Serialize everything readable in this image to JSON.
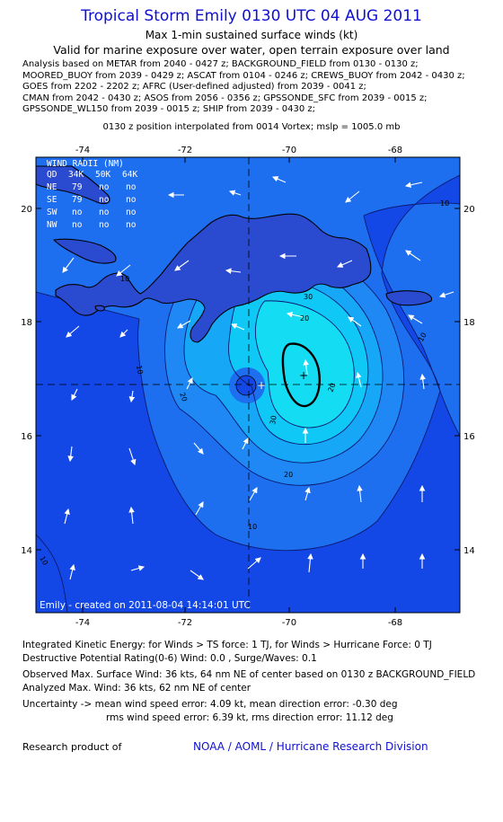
{
  "header": {
    "title": "Tropical Storm Emily 0130 UTC 04 AUG 2011",
    "subtitle": "Max 1-min sustained surface winds (kt)",
    "validity": "Valid for marine exposure over water, open terrain exposure over land"
  },
  "analysis_lines": [
    "Analysis based on METAR from 2040 - 0427 z; BACKGROUND_FIELD from 0130 - 0130 z;",
    "MOORED_BUOY from 2039 - 0429 z; ASCAT from 0104 - 0246 z; CREWS_BUOY from 2042 - 0430 z;",
    "GOES from 2202 - 2202 z; AFRC (User-defined adjusted) from 2039 - 0041 z;",
    "CMAN from 2042 - 0430 z; ASOS from 2056 - 0356 z; GPSSONDE_SFC from 2039 - 0015 z;",
    "GPSSONDE_WL150 from 2039 - 0015 z; SHIP from 2039 - 0430 z;"
  ],
  "position_line": "0130 z position interpolated from 0014 Vortex; mslp = 1005.0 mb",
  "map": {
    "lon_ticks": [
      "-74",
      "-72",
      "-70",
      "-68"
    ],
    "lat_ticks": [
      "20",
      "18",
      "16",
      "14"
    ],
    "contour_labels": [
      "10",
      "20",
      "30",
      "20",
      "30",
      "20",
      "10",
      "20",
      "10",
      "10",
      "10",
      "10"
    ],
    "colors": {
      "level_0": "#1448e6",
      "level_10": "#1e6ef0",
      "level_15": "#1f88f5",
      "level_20": "#16a8f7",
      "level_25": "#10c8f5",
      "level_30": "#14dcf2",
      "land": "#2a4ad0",
      "arrow": "#ffffff"
    },
    "wind_radii": {
      "header": "WIND RADII (NM)",
      "columns": [
        "QD",
        "34K",
        "50K",
        "64K"
      ],
      "rows": [
        [
          "NE",
          "79",
          "no",
          "no"
        ],
        [
          "SE",
          "79",
          "no",
          "no"
        ],
        [
          "SW",
          "no",
          "no",
          "no"
        ],
        [
          "NW",
          "no",
          "no",
          "no"
        ]
      ]
    },
    "footer": "Emily - created on 2011-08-04 14:14:01 UTC"
  },
  "stats": [
    "Integrated Kinetic Energy:  for Winds > TS force: 1 TJ,  for Winds > Hurricane Force: 0 TJ",
    "Destructive Potential Rating(0-6)   Wind: 0.0 , Surge/Waves: 0.1",
    "Observed Max. Surface Wind: 36 kts, 64 nm NE of center based on 0130 z BACKGROUND_FIELD",
    "Analyzed Max. Wind: 36 kts, 62 nm NE of center",
    "Uncertainty -> mean wind speed error: 4.09 kt,   mean direction error:  -0.30 deg",
    "rms wind speed error: 6.39 kt,  rms direction error: 11.12 deg"
  ],
  "credit": {
    "left": "Research product of",
    "right": "NOAA / AOML / Hurricane Research Division"
  }
}
